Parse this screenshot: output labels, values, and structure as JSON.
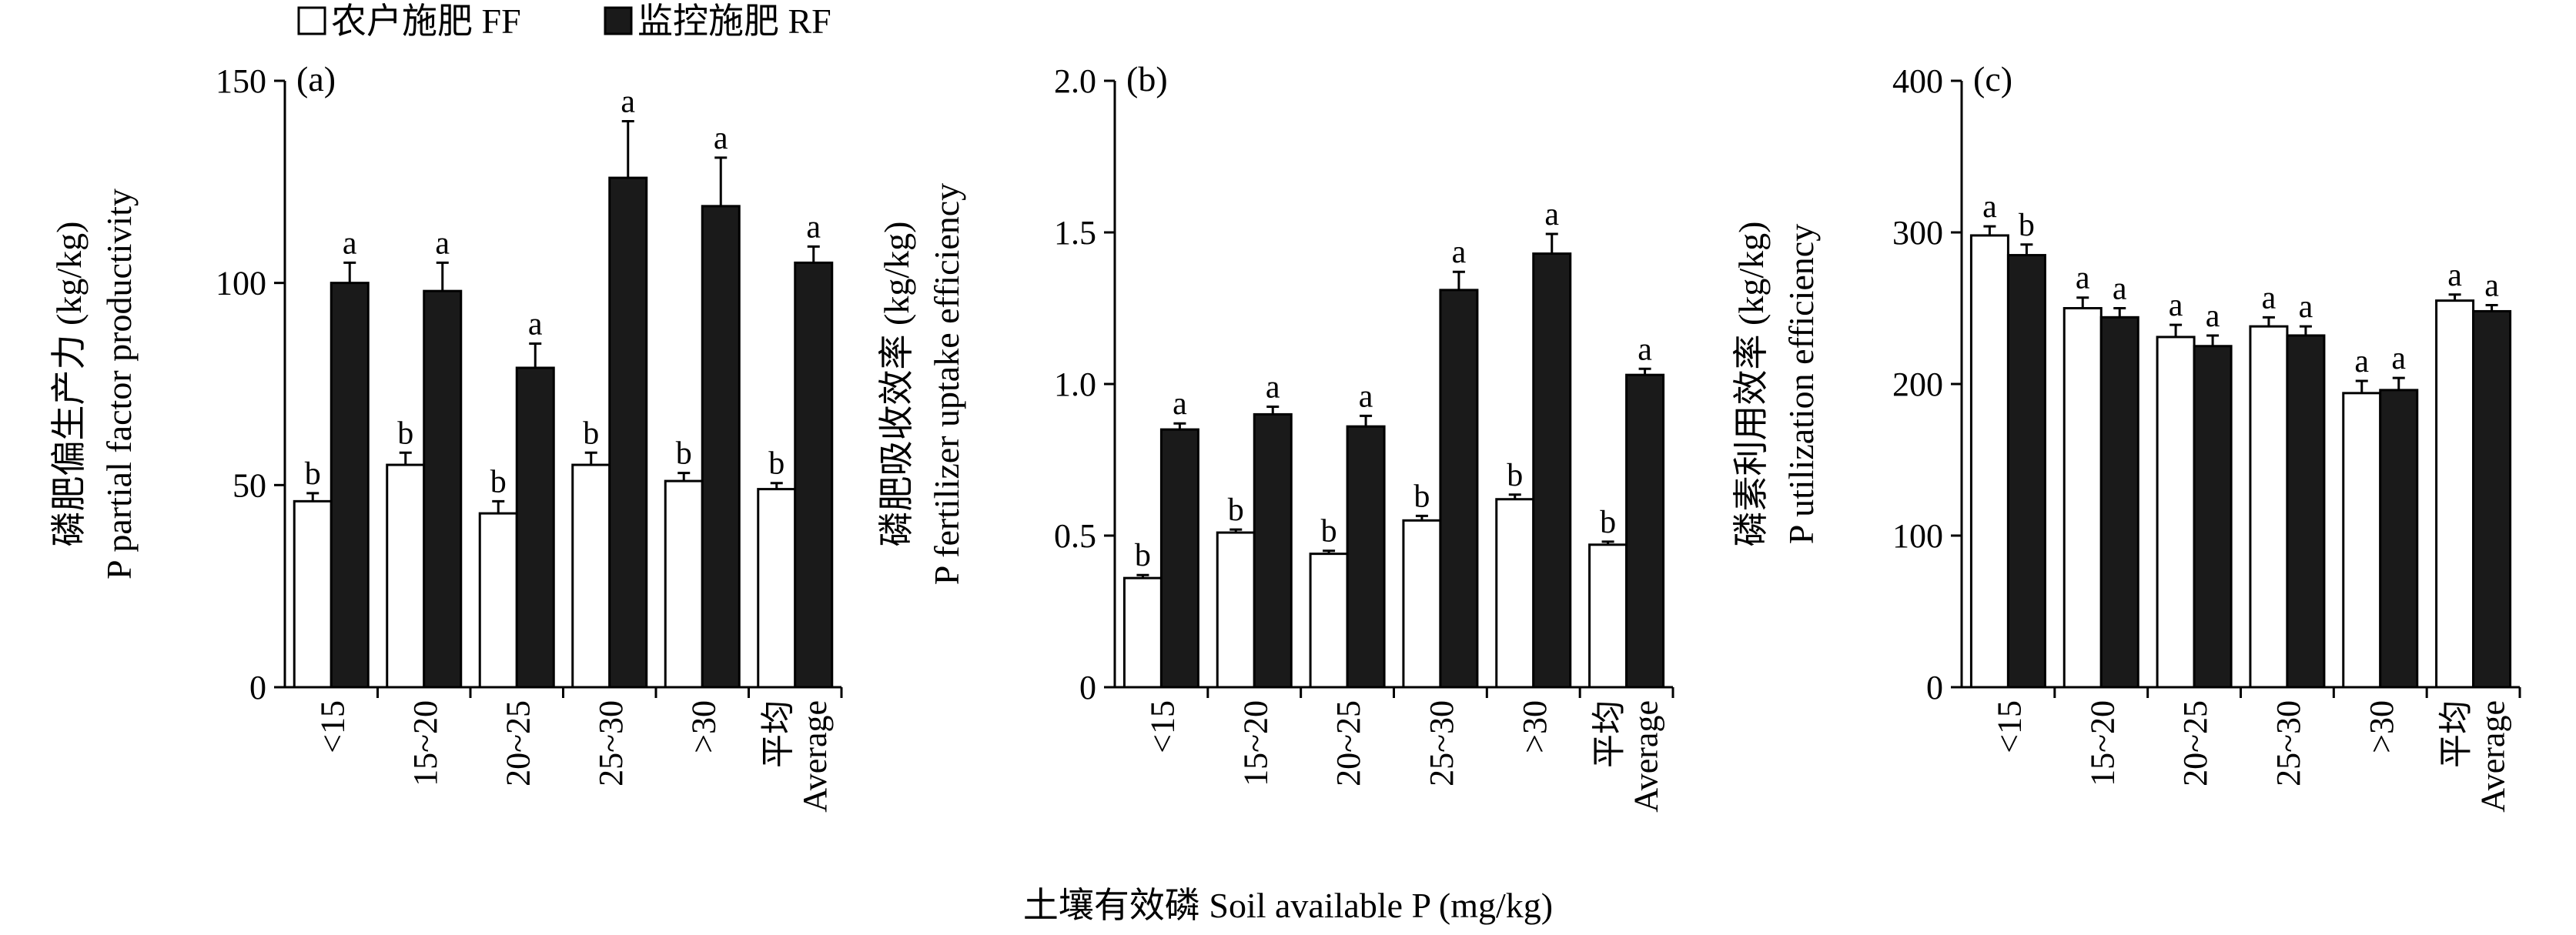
{
  "legend": {
    "items": [
      {
        "label": "农户施肥 FF",
        "color": "#ffffff"
      },
      {
        "label": "监控施肥 RF",
        "color": "#1a1a1a"
      }
    ]
  },
  "xlabel": "土壤有效磷 Soil available P (mg/kg)",
  "chart_data": [
    {
      "type": "bar",
      "panel": "(a)",
      "ylabel_cn": "磷肥偏生产力 (kg/kg)",
      "ylabel_en": "P partial factor productivity",
      "ylim": [
        0,
        150
      ],
      "yticks": [
        "0",
        "50",
        "100",
        "150"
      ],
      "categories": [
        "<15",
        "15~20",
        "20~25",
        "25~30",
        ">30",
        "平均 Average"
      ],
      "category_labels": [
        [
          "<15"
        ],
        [
          "15~20"
        ],
        [
          "20~25"
        ],
        [
          "25~30"
        ],
        [
          ">30"
        ],
        [
          "平均",
          "Average"
        ]
      ],
      "series": [
        {
          "name": "农户施肥 FF",
          "values": [
            46,
            55,
            43,
            55,
            51,
            49
          ],
          "errors": [
            2,
            3,
            3,
            3,
            2,
            1.5
          ],
          "labels": [
            "b",
            "b",
            "b",
            "b",
            "b",
            "b"
          ]
        },
        {
          "name": "监控施肥 RF",
          "values": [
            100,
            98,
            79,
            126,
            119,
            105
          ],
          "errors": [
            5,
            7,
            6,
            14,
            12,
            4
          ],
          "labels": [
            "a",
            "a",
            "a",
            "a",
            "a",
            "a"
          ]
        }
      ]
    },
    {
      "type": "bar",
      "panel": "(b)",
      "ylabel_cn": "磷肥吸收效率 (kg/kg)",
      "ylabel_en": "P fertilizer uptake efficiency",
      "ylim": [
        0,
        2.0
      ],
      "yticks": [
        "0",
        "0.5",
        "1.0",
        "1.5",
        "2.0"
      ],
      "categories": [
        "<15",
        "15~20",
        "20~25",
        "25~30",
        ">30",
        "平均 Average"
      ],
      "category_labels": [
        [
          "<15"
        ],
        [
          "15~20"
        ],
        [
          "20~25"
        ],
        [
          "25~30"
        ],
        [
          ">30"
        ],
        [
          "平均",
          "Average"
        ]
      ],
      "series": [
        {
          "name": "农户施肥 FF",
          "values": [
            0.36,
            0.51,
            0.44,
            0.55,
            0.62,
            0.47
          ],
          "errors": [
            0.01,
            0.01,
            0.01,
            0.015,
            0.015,
            0.01
          ],
          "labels": [
            "b",
            "b",
            "b",
            "b",
            "b",
            "b"
          ]
        },
        {
          "name": "监控施肥 RF",
          "values": [
            0.85,
            0.9,
            0.86,
            1.31,
            1.43,
            1.03
          ],
          "errors": [
            0.02,
            0.025,
            0.035,
            0.06,
            0.065,
            0.02
          ],
          "labels": [
            "a",
            "a",
            "a",
            "a",
            "a",
            "a"
          ]
        }
      ]
    },
    {
      "type": "bar",
      "panel": "(c)",
      "ylabel_cn": "磷素利用效率 (kg/kg)",
      "ylabel_en": "P utilization efficiency",
      "ylim": [
        0,
        400
      ],
      "yticks": [
        "0",
        "100",
        "200",
        "300",
        "400"
      ],
      "categories": [
        "<15",
        "15~20",
        "20~25",
        "25~30",
        ">30",
        "平均 Average"
      ],
      "category_labels": [
        [
          "<15"
        ],
        [
          "15~20"
        ],
        [
          "20~25"
        ],
        [
          "25~30"
        ],
        [
          ">30"
        ],
        [
          "平均",
          "Average"
        ]
      ],
      "series": [
        {
          "name": "农户施肥 FF",
          "values": [
            298,
            250,
            231,
            238,
            194,
            255
          ],
          "errors": [
            6,
            7,
            8,
            6,
            8,
            4
          ],
          "labels": [
            "a",
            "a",
            "a",
            "a",
            "a",
            "a"
          ]
        },
        {
          "name": "监控施肥 RF",
          "values": [
            285,
            244,
            225,
            232,
            196,
            248
          ],
          "errors": [
            7,
            6,
            7,
            6,
            8,
            4
          ],
          "labels": [
            "b",
            "a",
            "a",
            "a",
            "a",
            "a"
          ]
        }
      ]
    }
  ]
}
